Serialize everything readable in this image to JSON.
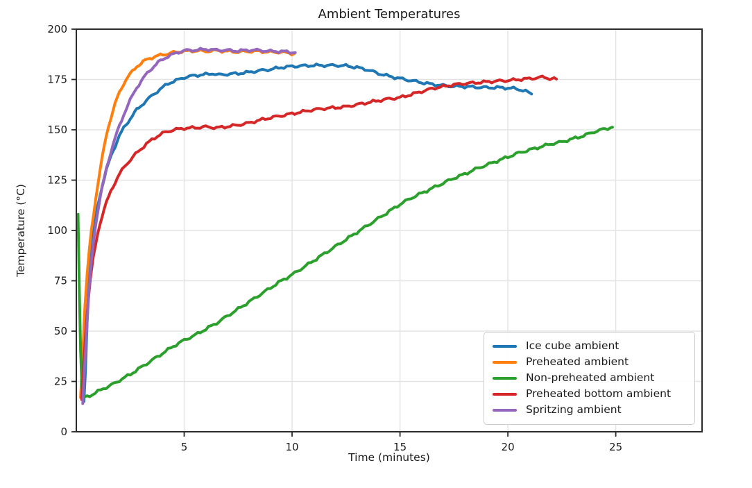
{
  "chart_data": {
    "type": "line",
    "title": "Ambient Temperatures",
    "xlabel": "Time (minutes)",
    "ylabel": "Temperature (°C)",
    "xlim": [
      0,
      29
    ],
    "ylim": [
      0,
      200
    ],
    "xticks": [
      5,
      10,
      15,
      20,
      25
    ],
    "yticks": [
      0,
      25,
      50,
      75,
      100,
      125,
      150,
      175,
      200
    ],
    "grid": true,
    "legend_position": "lower right",
    "style": {
      "grid_color": "#e3e3e3",
      "spine_color": "#2a2a2a",
      "text_color": "#1a1a1a",
      "background": "#ffffff",
      "line_width": 4
    },
    "series": [
      {
        "name": "Ice cube ambient",
        "color": "#1f77b4",
        "points": [
          [
            0.35,
            15
          ],
          [
            0.42,
            30
          ],
          [
            0.5,
            55
          ],
          [
            0.6,
            78
          ],
          [
            0.7,
            92
          ],
          [
            0.8,
            101
          ],
          [
            0.9,
            107
          ],
          [
            1.0,
            113
          ],
          [
            1.2,
            122
          ],
          [
            1.4,
            130
          ],
          [
            1.6,
            137
          ],
          [
            1.8,
            142
          ],
          [
            2.0,
            147
          ],
          [
            2.2,
            151
          ],
          [
            2.4,
            154
          ],
          [
            2.6,
            157
          ],
          [
            2.8,
            160
          ],
          [
            3.0,
            162
          ],
          [
            3.25,
            164.5
          ],
          [
            3.5,
            167
          ],
          [
            3.75,
            169
          ],
          [
            4.0,
            171
          ],
          [
            4.25,
            173
          ],
          [
            4.5,
            174
          ],
          [
            4.75,
            175
          ],
          [
            5.0,
            176
          ],
          [
            5.5,
            177
          ],
          [
            6.0,
            177.5
          ],
          [
            6.3,
            178
          ],
          [
            6.6,
            177.3
          ],
          [
            7.0,
            177.6
          ],
          [
            7.5,
            178
          ],
          [
            8.0,
            178.6
          ],
          [
            8.5,
            179.4
          ],
          [
            9.0,
            180
          ],
          [
            9.5,
            181
          ],
          [
            10.0,
            181.5
          ],
          [
            10.5,
            181.8
          ],
          [
            11.0,
            182
          ],
          [
            11.5,
            182
          ],
          [
            12.0,
            182
          ],
          [
            12.5,
            181.8
          ],
          [
            13.0,
            181
          ],
          [
            13.5,
            179.8
          ],
          [
            14.0,
            178
          ],
          [
            14.5,
            176.6
          ],
          [
            15.0,
            175.5
          ],
          [
            15.5,
            174.5
          ],
          [
            16.0,
            173.5
          ],
          [
            16.5,
            172.6
          ],
          [
            17.0,
            172
          ],
          [
            17.5,
            171.6
          ],
          [
            18.0,
            171.5
          ],
          [
            18.5,
            171.2
          ],
          [
            19.0,
            171
          ],
          [
            19.5,
            171
          ],
          [
            20.0,
            170.8
          ],
          [
            20.4,
            170.4
          ],
          [
            20.7,
            169.6
          ],
          [
            20.95,
            168.6
          ],
          [
            21.1,
            167.8
          ]
        ]
      },
      {
        "name": "Preheated ambient",
        "color": "#ff7f0e",
        "points": [
          [
            0.2,
            17
          ],
          [
            0.3,
            40
          ],
          [
            0.4,
            62
          ],
          [
            0.5,
            78
          ],
          [
            0.6,
            90
          ],
          [
            0.7,
            100
          ],
          [
            0.8,
            108
          ],
          [
            0.9,
            116
          ],
          [
            1.0,
            123
          ],
          [
            1.1,
            130
          ],
          [
            1.2,
            136
          ],
          [
            1.3,
            142
          ],
          [
            1.4,
            147.5
          ],
          [
            1.5,
            152
          ],
          [
            1.6,
            156
          ],
          [
            1.7,
            159.5
          ],
          [
            1.8,
            163
          ],
          [
            1.9,
            166
          ],
          [
            2.0,
            168.5
          ],
          [
            2.2,
            173
          ],
          [
            2.4,
            176.5
          ],
          [
            2.6,
            179
          ],
          [
            2.8,
            181.5
          ],
          [
            3.0,
            183
          ],
          [
            3.2,
            184.5
          ],
          [
            3.4,
            185.5
          ],
          [
            3.6,
            186.2
          ],
          [
            3.8,
            186.8
          ],
          [
            4.0,
            187.3
          ],
          [
            4.25,
            187.8
          ],
          [
            4.5,
            188.4
          ],
          [
            4.75,
            188.8
          ],
          [
            5.0,
            189
          ],
          [
            5.5,
            189.3
          ],
          [
            6.0,
            189
          ],
          [
            6.5,
            189.4
          ],
          [
            7.0,
            189
          ],
          [
            7.5,
            188.7
          ],
          [
            8.0,
            189
          ],
          [
            8.5,
            189
          ],
          [
            9.0,
            188.6
          ],
          [
            9.5,
            188.6
          ],
          [
            10.1,
            187.8
          ]
        ]
      },
      {
        "name": "Non-preheated ambient",
        "color": "#2ca02c",
        "points": [
          [
            0.08,
            108
          ],
          [
            0.14,
            70
          ],
          [
            0.2,
            40
          ],
          [
            0.26,
            22
          ],
          [
            0.32,
            16.5
          ],
          [
            0.5,
            17.5
          ],
          [
            0.75,
            18.5
          ],
          [
            1.0,
            20
          ],
          [
            1.25,
            21.5
          ],
          [
            1.5,
            22.5
          ],
          [
            1.75,
            24
          ],
          [
            2.0,
            25.5
          ],
          [
            2.5,
            28.5
          ],
          [
            3.0,
            32
          ],
          [
            3.5,
            35.5
          ],
          [
            4.0,
            39
          ],
          [
            4.5,
            42.5
          ],
          [
            5.0,
            45.5
          ],
          [
            5.5,
            48
          ],
          [
            6.0,
            51
          ],
          [
            6.5,
            54
          ],
          [
            7.0,
            57.5
          ],
          [
            7.5,
            61
          ],
          [
            8.0,
            64.5
          ],
          [
            8.5,
            68
          ],
          [
            9.0,
            71.5
          ],
          [
            9.5,
            75
          ],
          [
            10.0,
            78
          ],
          [
            10.5,
            81.5
          ],
          [
            11.0,
            85
          ],
          [
            11.5,
            88.5
          ],
          [
            12.0,
            92
          ],
          [
            12.5,
            95.5
          ],
          [
            13.0,
            99
          ],
          [
            13.5,
            102.5
          ],
          [
            14.0,
            106
          ],
          [
            14.5,
            109.5
          ],
          [
            15.0,
            113
          ],
          [
            15.5,
            116
          ],
          [
            16.0,
            118.5
          ],
          [
            16.5,
            121
          ],
          [
            17.0,
            123.5
          ],
          [
            17.5,
            126
          ],
          [
            18.0,
            128
          ],
          [
            18.5,
            130.5
          ],
          [
            19.0,
            132.5
          ],
          [
            19.5,
            134.5
          ],
          [
            20.0,
            136.5
          ],
          [
            20.5,
            138.5
          ],
          [
            21.0,
            140
          ],
          [
            21.5,
            141.5
          ],
          [
            22.0,
            143
          ],
          [
            22.5,
            144
          ],
          [
            23.0,
            145.5
          ],
          [
            23.5,
            147
          ],
          [
            24.0,
            149
          ],
          [
            24.4,
            150.2
          ],
          [
            24.85,
            151.3
          ]
        ]
      },
      {
        "name": "Preheated bottom ambient",
        "color": "#d62728",
        "points": [
          [
            0.25,
            16
          ],
          [
            0.35,
            35
          ],
          [
            0.45,
            52
          ],
          [
            0.55,
            65
          ],
          [
            0.65,
            76
          ],
          [
            0.78,
            86
          ],
          [
            0.9,
            93
          ],
          [
            1.0,
            99
          ],
          [
            1.2,
            107.5
          ],
          [
            1.4,
            114
          ],
          [
            1.6,
            119.5
          ],
          [
            1.8,
            124
          ],
          [
            2.0,
            128
          ],
          [
            2.25,
            132
          ],
          [
            2.5,
            135
          ],
          [
            2.75,
            138
          ],
          [
            3.0,
            140.5
          ],
          [
            3.25,
            143
          ],
          [
            3.5,
            145
          ],
          [
            3.75,
            146.8
          ],
          [
            4.0,
            148.3
          ],
          [
            4.5,
            150
          ],
          [
            5.0,
            150.8
          ],
          [
            5.5,
            151
          ],
          [
            6.0,
            151.5
          ],
          [
            6.5,
            151
          ],
          [
            7.0,
            151.6
          ],
          [
            7.5,
            152.4
          ],
          [
            8.0,
            153.4
          ],
          [
            8.5,
            154.8
          ],
          [
            9.0,
            156
          ],
          [
            9.5,
            157
          ],
          [
            10.0,
            158
          ],
          [
            10.5,
            159
          ],
          [
            11.0,
            160
          ],
          [
            11.5,
            160.6
          ],
          [
            12.0,
            161
          ],
          [
            12.5,
            161.5
          ],
          [
            13.0,
            162.5
          ],
          [
            13.5,
            163.5
          ],
          [
            14.0,
            164.5
          ],
          [
            14.5,
            165.4
          ],
          [
            15.0,
            166
          ],
          [
            15.5,
            167.5
          ],
          [
            16.0,
            169
          ],
          [
            16.5,
            170.5
          ],
          [
            17.0,
            171.5
          ],
          [
            17.5,
            172.4
          ],
          [
            18.0,
            173
          ],
          [
            18.5,
            173.4
          ],
          [
            19.0,
            173.8
          ],
          [
            19.5,
            174.2
          ],
          [
            20.0,
            174.5
          ],
          [
            20.5,
            175
          ],
          [
            21.0,
            175.4
          ],
          [
            21.5,
            176
          ],
          [
            21.7,
            176.2
          ],
          [
            21.95,
            175.4
          ],
          [
            22.25,
            175.2
          ]
        ]
      },
      {
        "name": "Spritzing ambient",
        "color": "#9467bd",
        "points": [
          [
            0.3,
            14
          ],
          [
            0.4,
            35
          ],
          [
            0.5,
            55
          ],
          [
            0.6,
            72
          ],
          [
            0.7,
            85
          ],
          [
            0.8,
            95
          ],
          [
            0.9,
            103
          ],
          [
            1.0,
            110
          ],
          [
            1.2,
            121.5
          ],
          [
            1.4,
            131
          ],
          [
            1.6,
            139
          ],
          [
            1.8,
            146
          ],
          [
            2.0,
            152
          ],
          [
            2.2,
            157.5
          ],
          [
            2.4,
            162.5
          ],
          [
            2.6,
            167
          ],
          [
            2.8,
            171
          ],
          [
            3.0,
            174
          ],
          [
            3.2,
            177
          ],
          [
            3.4,
            179.5
          ],
          [
            3.6,
            181.5
          ],
          [
            3.8,
            183.5
          ],
          [
            4.0,
            185
          ],
          [
            4.25,
            186.5
          ],
          [
            4.5,
            187.6
          ],
          [
            4.75,
            188.6
          ],
          [
            5.0,
            189.4
          ],
          [
            5.5,
            189.6
          ],
          [
            6.0,
            190
          ],
          [
            6.5,
            189.6
          ],
          [
            7.0,
            189.5
          ],
          [
            7.5,
            189.2
          ],
          [
            8.0,
            189.6
          ],
          [
            8.5,
            189.5
          ],
          [
            9.0,
            189
          ],
          [
            9.5,
            189
          ],
          [
            10.15,
            188.3
          ]
        ]
      }
    ]
  }
}
